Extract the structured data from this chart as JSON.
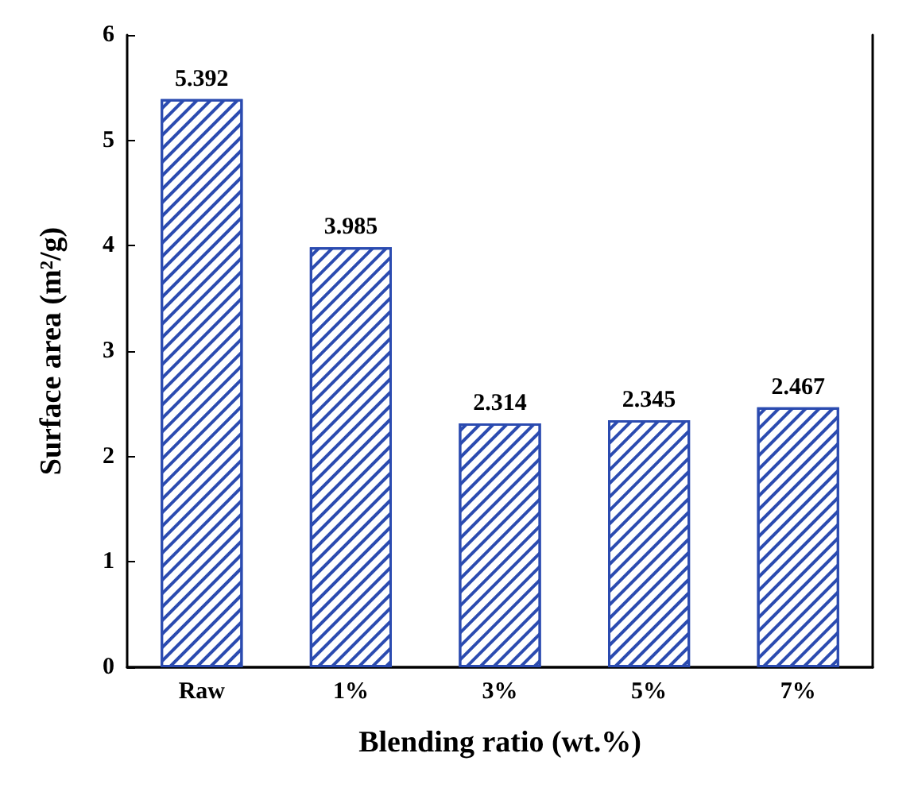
{
  "chart_data": {
    "type": "bar",
    "xlabel": "Blending ratio (wt.%)",
    "ylabel": "Surface area (m²/g)",
    "categories": [
      "Raw",
      "1%",
      "3%",
      "5%",
      "7%"
    ],
    "values": [
      5.392,
      3.985,
      2.314,
      2.345,
      2.467
    ],
    "color": "#2b4bb0",
    "ylim": [
      0,
      6
    ],
    "yticks": [
      0,
      1,
      2,
      3,
      4,
      5,
      6
    ],
    "grid": false,
    "data_labels": true
  }
}
